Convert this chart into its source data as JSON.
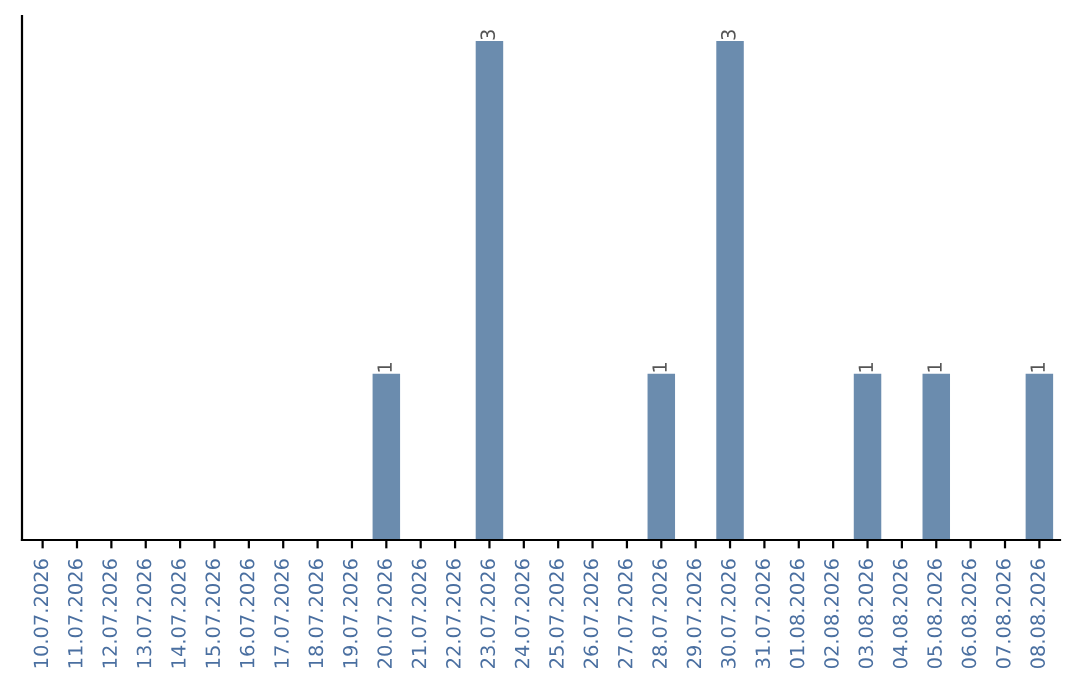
{
  "chart_data": {
    "type": "bar",
    "categories": [
      "10.07.2026",
      "11.07.2026",
      "12.07.2026",
      "13.07.2026",
      "14.07.2026",
      "15.07.2026",
      "16.07.2026",
      "17.07.2026",
      "18.07.2026",
      "19.07.2026",
      "20.07.2026",
      "21.07.2026",
      "22.07.2026",
      "23.07.2026",
      "24.07.2026",
      "25.07.2026",
      "26.07.2026",
      "27.07.2026",
      "28.07.2026",
      "29.07.2026",
      "30.07.2026",
      "31.07.2026",
      "01.08.2026",
      "02.08.2026",
      "03.08.2026",
      "04.08.2026",
      "05.08.2026",
      "06.08.2026",
      "07.08.2026",
      "08.08.2026"
    ],
    "values": [
      0,
      0,
      0,
      0,
      0,
      0,
      0,
      0,
      0,
      0,
      1,
      0,
      0,
      3,
      0,
      0,
      0,
      0,
      1,
      0,
      3,
      0,
      0,
      0,
      1,
      0,
      1,
      0,
      0,
      1
    ],
    "value_labels": [
      null,
      null,
      null,
      null,
      null,
      null,
      null,
      null,
      null,
      null,
      "1",
      null,
      null,
      "3",
      null,
      null,
      null,
      null,
      "1",
      null,
      "3",
      null,
      null,
      null,
      "1",
      null,
      "1",
      null,
      null,
      "1"
    ],
    "color": "#6b8cae",
    "tick_labels": "x",
    "grid": false,
    "legend": false
  }
}
